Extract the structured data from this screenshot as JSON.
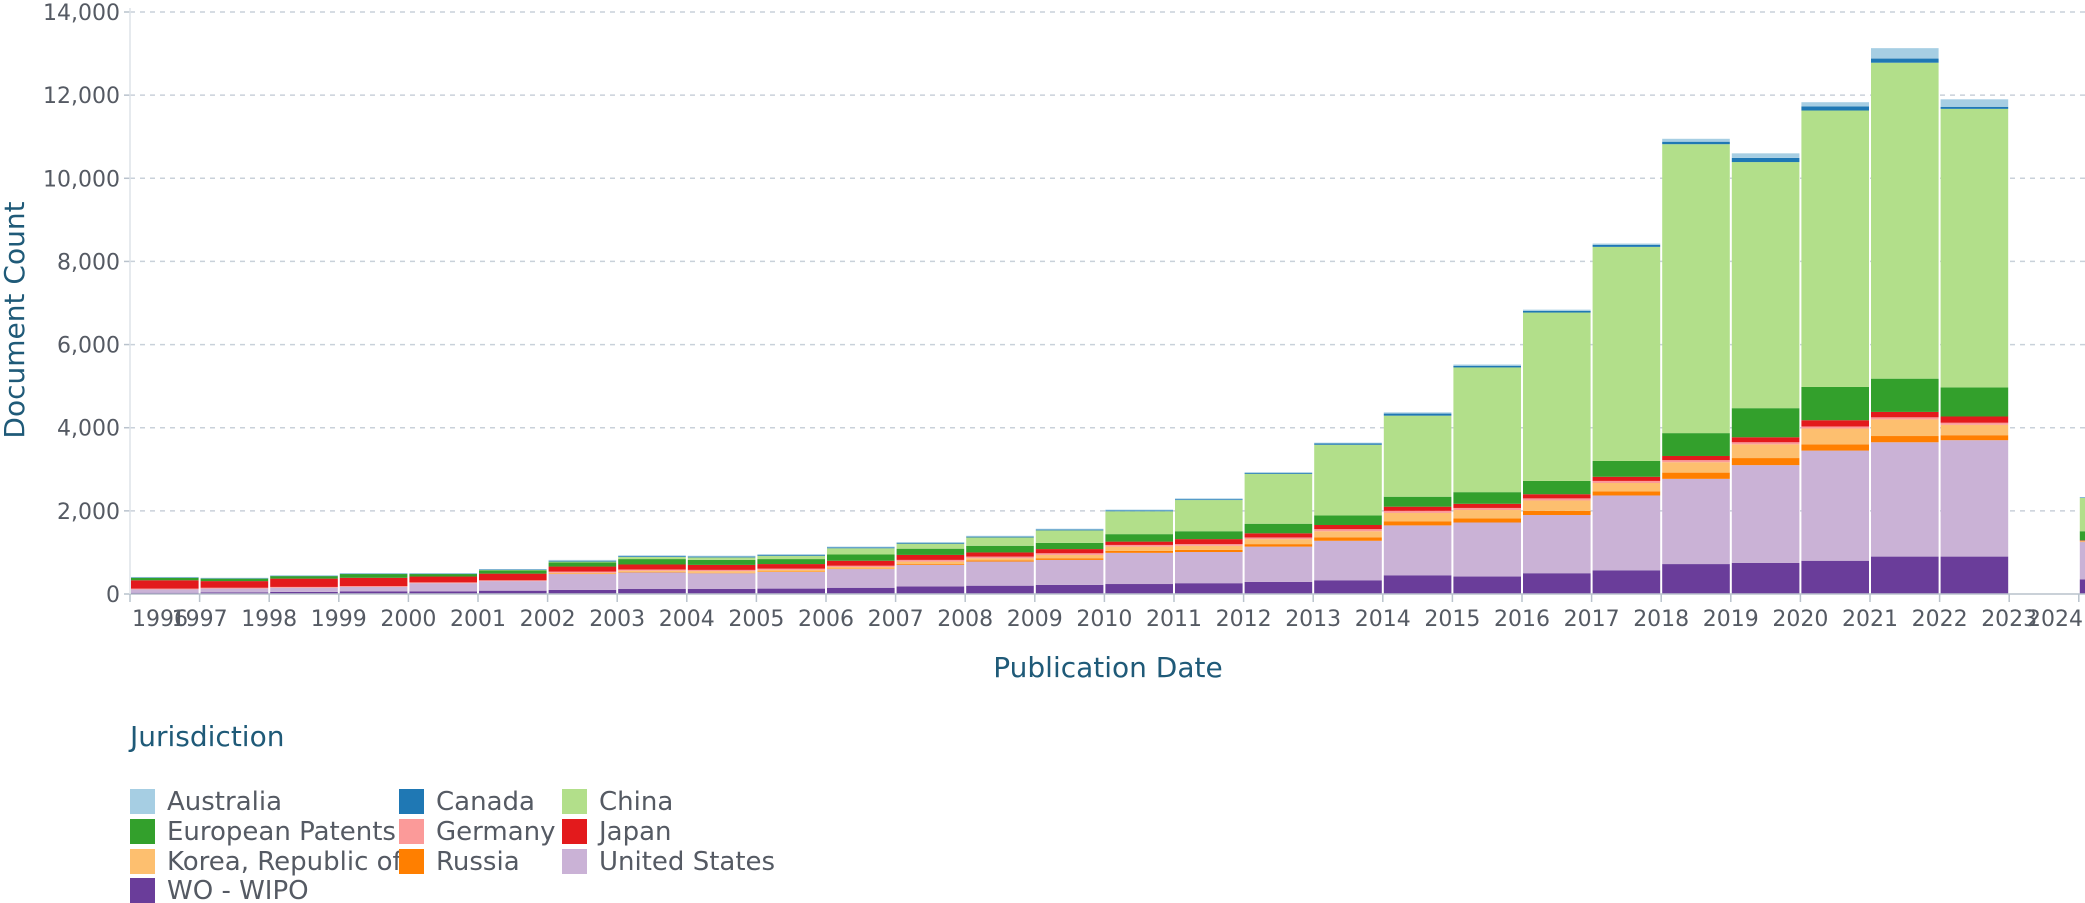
{
  "chart_data": {
    "type": "bar",
    "stacked": true,
    "xlabel": "Publication Date",
    "ylabel": "Document Count",
    "ylim": [
      0,
      14000
    ],
    "yticks": [
      0,
      2000,
      4000,
      6000,
      8000,
      10000,
      12000,
      14000
    ],
    "ytick_labels": [
      "0",
      "2,000",
      "4,000",
      "6,000",
      "8,000",
      "10,000",
      "12,000",
      "14,000"
    ],
    "grid": true,
    "legend": {
      "title": "Jurisdiction",
      "placement": "bottom-left"
    },
    "categories": [
      "1996",
      "1997",
      "1998",
      "1999",
      "2000",
      "2001",
      "2002",
      "2003",
      "2004",
      "2005",
      "2006",
      "2007",
      "2008",
      "2009",
      "2010",
      "2011",
      "2012",
      "2013",
      "2014",
      "2015",
      "2016",
      "2017",
      "2018",
      "2019",
      "2020",
      "2021",
      "2022",
      "2023",
      "2024"
    ],
    "series": [
      {
        "name": "WO - WIPO",
        "color": "#6a3d9a",
        "values": [
          30,
          40,
          50,
          60,
          60,
          80,
          100,
          120,
          120,
          130,
          150,
          180,
          200,
          220,
          240,
          260,
          290,
          330,
          450,
          420,
          500,
          570,
          720,
          750,
          800,
          900,
          900,
          0,
          350
        ]
      },
      {
        "name": "United States",
        "color": "#cab2d6",
        "values": [
          80,
          90,
          100,
          110,
          200,
          230,
          380,
          400,
          380,
          400,
          450,
          520,
          580,
          600,
          750,
          750,
          850,
          950,
          1200,
          1300,
          1400,
          1800,
          2050,
          2350,
          2650,
          2750,
          2800,
          1,
          900
        ]
      },
      {
        "name": "Russia",
        "color": "#ff7f00",
        "values": [
          0,
          0,
          0,
          0,
          0,
          0,
          10,
          10,
          10,
          10,
          10,
          20,
          30,
          40,
          50,
          50,
          60,
          80,
          100,
          100,
          100,
          100,
          150,
          170,
          150,
          150,
          120,
          0,
          10
        ]
      },
      {
        "name": "Korea, Republic of",
        "color": "#fdbf6f",
        "values": [
          0,
          0,
          0,
          0,
          0,
          0,
          20,
          30,
          40,
          40,
          40,
          60,
          50,
          80,
          100,
          100,
          120,
          150,
          200,
          200,
          250,
          200,
          250,
          330,
          380,
          400,
          250,
          0,
          10
        ]
      },
      {
        "name": "Germany",
        "color": "#fb9a99",
        "values": [
          20,
          20,
          20,
          20,
          20,
          20,
          30,
          30,
          30,
          30,
          30,
          40,
          40,
          40,
          40,
          40,
          40,
          50,
          50,
          50,
          50,
          50,
          50,
          50,
          50,
          50,
          50,
          0,
          10
        ]
      },
      {
        "name": "Japan",
        "color": "#e31a1c",
        "values": [
          200,
          160,
          200,
          200,
          140,
          160,
          120,
          120,
          120,
          110,
          120,
          120,
          100,
          100,
          80,
          120,
          100,
          100,
          100,
          100,
          100,
          100,
          100,
          120,
          150,
          130,
          150,
          0,
          10
        ]
      },
      {
        "name": "European Patents",
        "color": "#33a02c",
        "values": [
          60,
          60,
          60,
          90,
          60,
          80,
          100,
          130,
          120,
          120,
          150,
          150,
          160,
          150,
          180,
          190,
          230,
          230,
          240,
          280,
          320,
          380,
          550,
          700,
          800,
          800,
          700,
          0,
          220
        ]
      },
      {
        "name": "China",
        "color": "#b2df8a",
        "values": [
          0,
          0,
          0,
          0,
          0,
          10,
          20,
          50,
          60,
          80,
          150,
          120,
          200,
          300,
          550,
          750,
          1200,
          1700,
          1950,
          3000,
          4050,
          5150,
          6950,
          5920,
          6650,
          7600,
          6700,
          0,
          800
        ]
      },
      {
        "name": "Canada",
        "color": "#1f78b4",
        "values": [
          10,
          10,
          10,
          10,
          10,
          10,
          20,
          20,
          20,
          20,
          20,
          20,
          20,
          20,
          20,
          20,
          20,
          30,
          50,
          40,
          40,
          50,
          60,
          100,
          100,
          100,
          50,
          0,
          10
        ]
      },
      {
        "name": "Australia",
        "color": "#a6cee3",
        "values": [
          10,
          10,
          10,
          10,
          10,
          10,
          20,
          20,
          20,
          20,
          20,
          20,
          20,
          20,
          20,
          20,
          20,
          20,
          30,
          30,
          30,
          30,
          70,
          110,
          100,
          250,
          180,
          0,
          10
        ]
      }
    ]
  },
  "legend_items": [
    {
      "name": "Australia",
      "color": "#a6cee3"
    },
    {
      "name": "Canada",
      "color": "#1f78b4"
    },
    {
      "name": "China",
      "color": "#b2df8a"
    },
    {
      "name": "European Patents",
      "color": "#33a02c"
    },
    {
      "name": "Germany",
      "color": "#fb9a99"
    },
    {
      "name": "Japan",
      "color": "#e31a1c"
    },
    {
      "name": "Korea, Republic of",
      "color": "#fdbf6f"
    },
    {
      "name": "Russia",
      "color": "#ff7f00"
    },
    {
      "name": "United States",
      "color": "#cab2d6"
    },
    {
      "name": "WO - WIPO",
      "color": "#6a3d9a"
    }
  ]
}
